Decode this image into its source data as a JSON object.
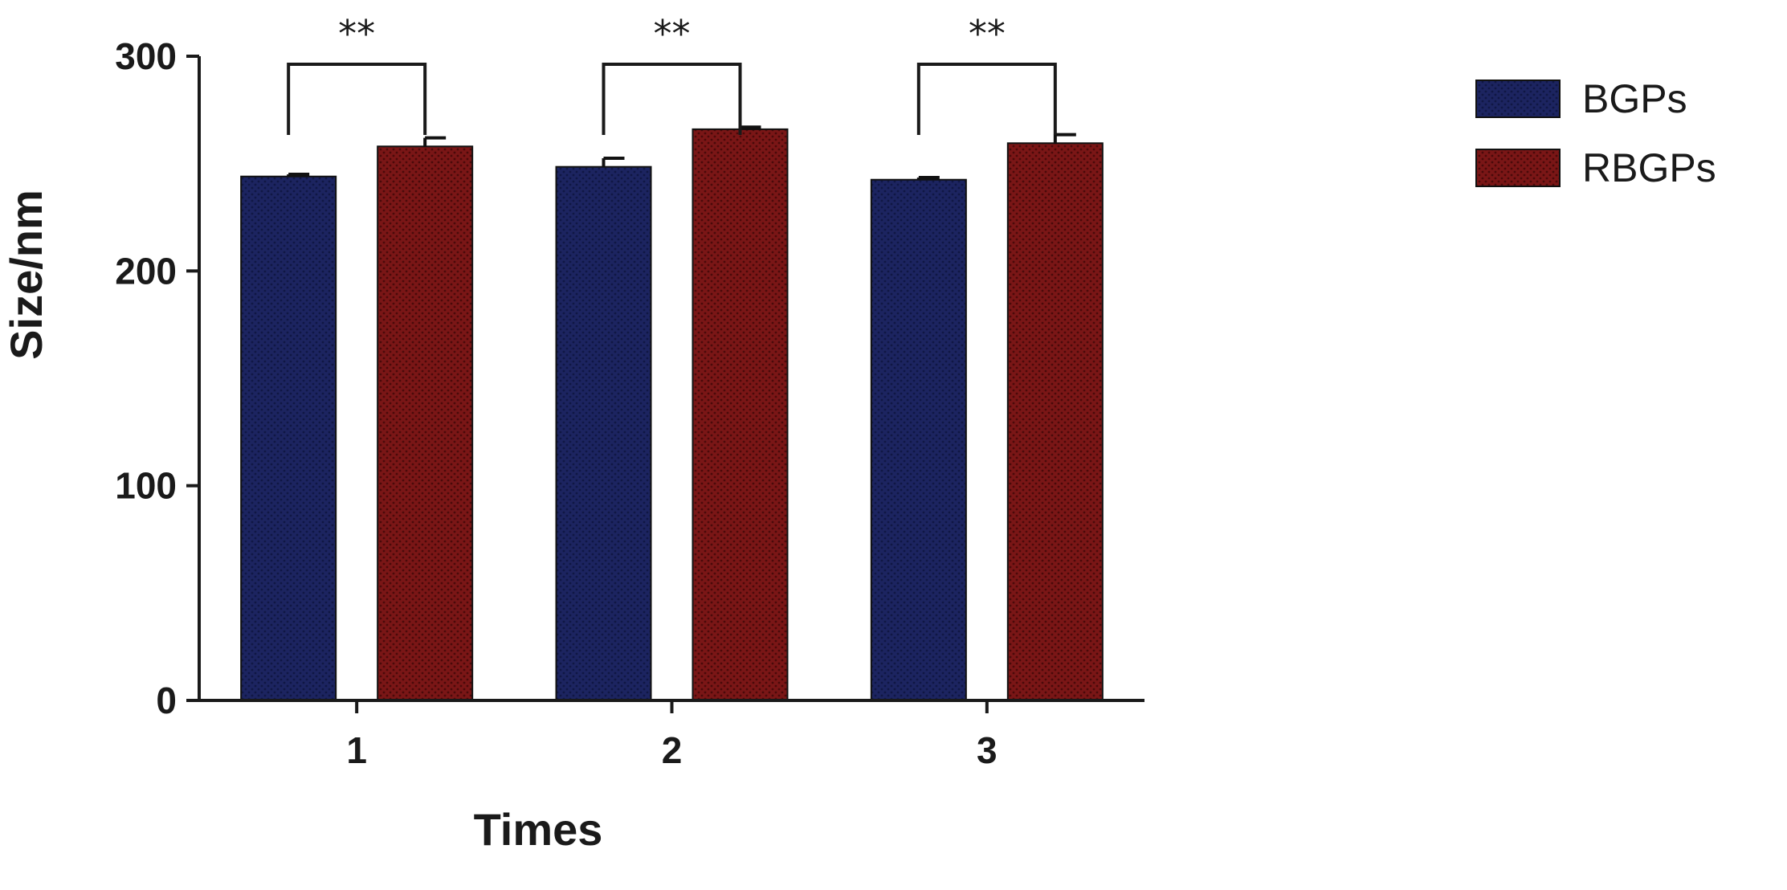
{
  "chart_data": {
    "type": "bar",
    "title": "",
    "xlabel": "Times",
    "ylabel": "Size/nm",
    "categories": [
      "1",
      "2",
      "3"
    ],
    "ylim": [
      0,
      300
    ],
    "yticks": [
      0,
      100,
      200,
      300
    ],
    "grid": false,
    "legend_position": "top-right",
    "series": [
      {
        "name": "BGPs",
        "color": "#1c2460",
        "values": [
          244,
          248.5,
          242.5
        ],
        "errors": [
          1,
          4,
          1
        ]
      },
      {
        "name": "RBGPs",
        "color": "#7a1616",
        "values": [
          258,
          266,
          259.5
        ],
        "errors": [
          4,
          1,
          4
        ]
      }
    ],
    "annotations": [
      {
        "category": "1",
        "label": "**"
      },
      {
        "category": "2",
        "label": "**"
      },
      {
        "category": "3",
        "label": "**"
      }
    ]
  }
}
